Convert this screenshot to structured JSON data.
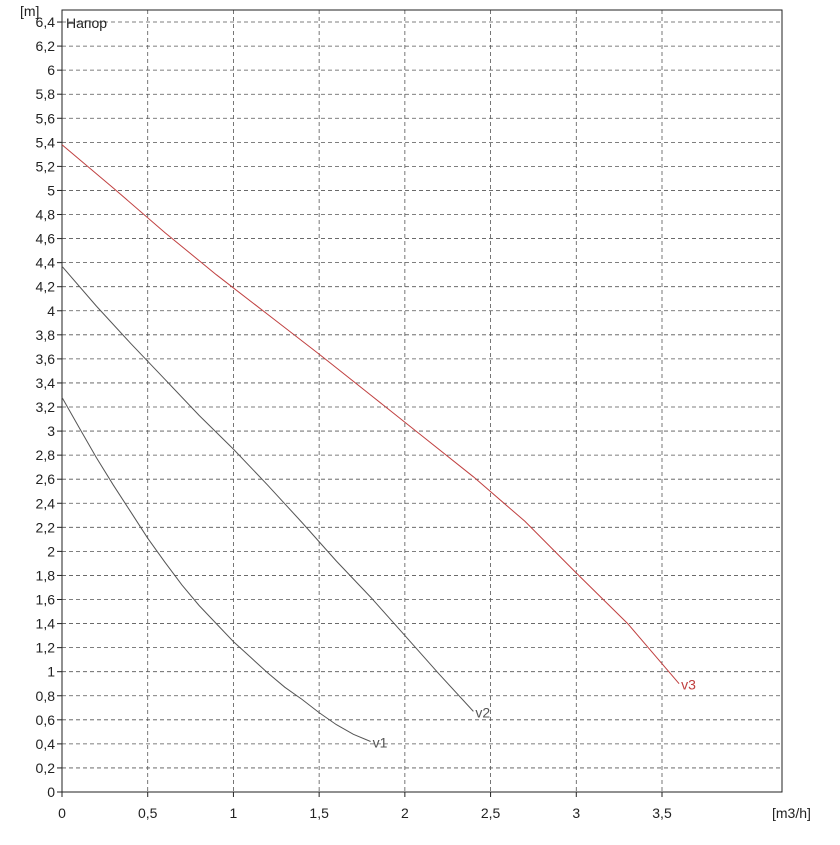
{
  "chart_data": {
    "type": "line",
    "title": "Напор",
    "xlabel": "[m3/h]",
    "ylabel": "[m]",
    "xlim": [
      0,
      4.2
    ],
    "ylim": [
      0,
      6.5
    ],
    "x_ticks": [
      0,
      0.5,
      1,
      1.5,
      2,
      2.5,
      3,
      3.5
    ],
    "x_tick_labels": [
      "0",
      "0,5",
      "1",
      "1,5",
      "2",
      "2,5",
      "3",
      "3,5"
    ],
    "y_ticks": [
      0,
      0.2,
      0.4,
      0.6,
      0.8,
      1,
      1.2,
      1.4,
      1.6,
      1.8,
      2,
      2.2,
      2.4,
      2.6,
      2.8,
      3,
      3.2,
      3.4,
      3.6,
      3.8,
      4,
      4.2,
      4.4,
      4.6,
      4.8,
      5,
      5.2,
      5.4,
      5.6,
      5.8,
      6,
      6.2,
      6.4
    ],
    "y_tick_labels": [
      "0",
      "0,2",
      "0,4",
      "0,6",
      "0,8",
      "1",
      "1,2",
      "1,4",
      "1,6",
      "1,8",
      "2",
      "2,2",
      "2,4",
      "2,6",
      "2,8",
      "3",
      "3,2",
      "3,4",
      "3,6",
      "3,8",
      "4",
      "4,2",
      "4,4",
      "4,6",
      "4,8",
      "5",
      "5,2",
      "5,4",
      "5,6",
      "5,8",
      "6",
      "6,2",
      "6,4"
    ],
    "grid": true,
    "series": [
      {
        "name": "v1",
        "color": "#555555",
        "x": [
          0,
          0.1,
          0.2,
          0.3,
          0.4,
          0.5,
          0.6,
          0.7,
          0.8,
          0.9,
          1.0,
          1.1,
          1.2,
          1.3,
          1.4,
          1.5,
          1.6,
          1.7,
          1.8
        ],
        "y": [
          3.28,
          3.03,
          2.78,
          2.55,
          2.33,
          2.11,
          1.91,
          1.72,
          1.55,
          1.4,
          1.25,
          1.12,
          0.99,
          0.87,
          0.77,
          0.66,
          0.56,
          0.48,
          0.42
        ]
      },
      {
        "name": "v2",
        "color": "#555555",
        "x": [
          0,
          0.2,
          0.4,
          0.6,
          0.8,
          1.0,
          1.2,
          1.4,
          1.6,
          1.8,
          2.0,
          2.2,
          2.4
        ],
        "y": [
          4.37,
          4.04,
          3.73,
          3.43,
          3.13,
          2.85,
          2.55,
          2.24,
          1.92,
          1.62,
          1.3,
          0.98,
          0.67
        ]
      },
      {
        "name": "v3",
        "color": "#c04040",
        "x": [
          0,
          0.3,
          0.6,
          0.9,
          1.2,
          1.5,
          1.8,
          2.1,
          2.4,
          2.7,
          3.0,
          3.3,
          3.6
        ],
        "y": [
          5.38,
          5.02,
          4.65,
          4.3,
          3.97,
          3.64,
          3.3,
          2.96,
          2.62,
          2.25,
          1.82,
          1.4,
          0.9
        ]
      }
    ]
  }
}
